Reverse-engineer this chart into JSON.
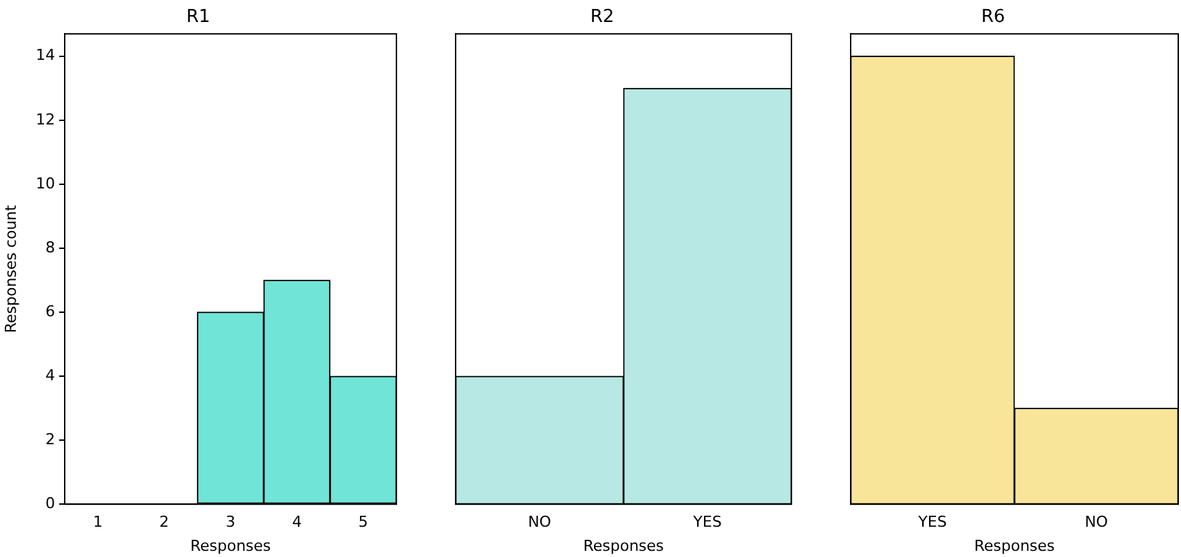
{
  "chart_data": [
    {
      "type": "bar",
      "title": "R1",
      "xlabel": "Responses",
      "ylabel": "Responses count",
      "categories": [
        "1",
        "2",
        "3",
        "4",
        "5"
      ],
      "values": [
        0,
        0,
        6,
        7,
        4
      ],
      "color": "#70e4d6",
      "ylim": [
        0,
        14.7
      ],
      "yticks": [
        0,
        2,
        4,
        6,
        8,
        10,
        12,
        14
      ]
    },
    {
      "type": "bar",
      "title": "R2",
      "xlabel": "Responses",
      "categories": [
        "NO",
        "YES"
      ],
      "values": [
        4,
        13
      ],
      "color": "#b7e8e4",
      "ylim": [
        0,
        14.7
      ],
      "yticks": [
        0,
        2,
        4,
        6,
        8,
        10,
        12,
        14
      ],
      "tick_labels": "x"
    },
    {
      "type": "bar",
      "title": "R6",
      "xlabel": "Responses",
      "categories": [
        "YES",
        "NO"
      ],
      "values": [
        14,
        3
      ],
      "color": "#f8e599",
      "ylim": [
        0,
        14.7
      ],
      "yticks": [
        0,
        2,
        4,
        6,
        8,
        10,
        12,
        14
      ],
      "tick_labels": "x"
    }
  ]
}
